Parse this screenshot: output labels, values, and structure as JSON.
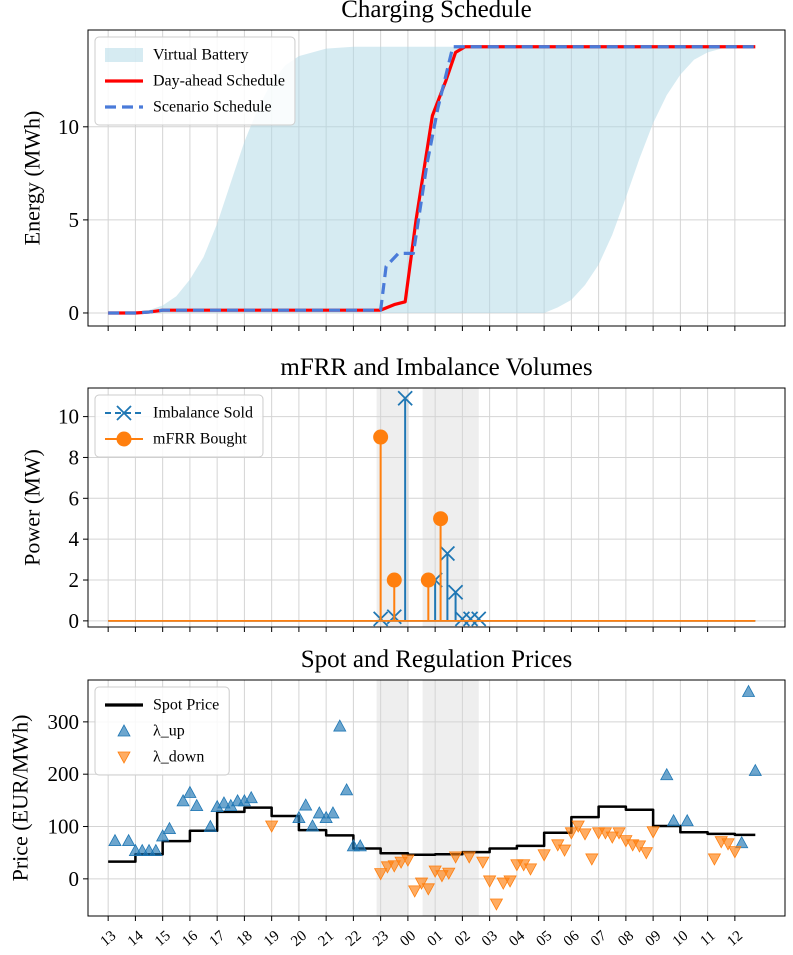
{
  "chart_data": [
    {
      "type": "line",
      "title": "Charging Schedule",
      "ylabel": "Energy (MWh)",
      "xlim": [
        12.26,
        37.84
      ],
      "ylim": [
        -0.7,
        15.2
      ],
      "xticks": [
        13,
        14,
        15,
        16,
        17,
        18,
        19,
        20,
        21,
        22,
        23,
        24,
        25,
        26,
        27,
        28,
        29,
        30,
        31,
        32,
        33,
        34,
        35,
        36
      ],
      "yticks": [
        0,
        5,
        10
      ],
      "grid": true,
      "legend": "upper left",
      "series": [
        {
          "name": "Virtual Battery",
          "color": "#add8e6",
          "style": "band",
          "x": [
            13,
            14,
            14.5,
            15,
            15.5,
            16,
            16.5,
            17,
            17.5,
            18,
            18.5,
            19,
            19.5,
            20,
            21,
            22,
            29,
            29.5,
            30,
            30.5,
            31,
            31.5,
            32,
            32.5,
            33,
            33.5,
            34,
            34.5,
            35,
            35.5,
            36,
            36.75
          ],
          "upper": [
            0,
            0.05,
            0.15,
            0.4,
            0.9,
            1.8,
            3,
            4.8,
            7,
            9.2,
            11,
            12.4,
            13.3,
            13.8,
            14.2,
            14.3,
            14.3,
            14.3,
            14.3,
            14.3,
            14.3,
            14.3,
            14.3,
            14.3,
            14.3,
            14.3,
            14.3,
            14.3,
            14.3,
            14.3,
            14.3,
            14.3
          ],
          "lower": [
            0,
            0,
            0,
            0,
            0,
            0,
            0,
            0,
            0,
            0,
            0,
            0,
            0,
            0,
            0,
            0,
            0,
            0.3,
            0.7,
            1.5,
            2.6,
            4.2,
            6.2,
            8.3,
            10.2,
            11.7,
            12.8,
            13.6,
            14.0,
            14.2,
            14.3,
            14.3
          ]
        },
        {
          "name": "Day-ahead Schedule",
          "color": "#ff0000",
          "style": "line",
          "x": [
            13,
            14,
            14.5,
            15,
            23,
            23.5,
            23.9,
            24.3,
            24.9,
            25.4,
            25.75,
            26.1,
            36.75
          ],
          "values": [
            0,
            0,
            0.05,
            0.15,
            0.15,
            0.45,
            0.6,
            5,
            10.6,
            12.5,
            14,
            14.3,
            14.3
          ]
        },
        {
          "name": "Scenario Schedule",
          "color": "#4a7bd9",
          "style": "line",
          "dashed": true,
          "x": [
            13,
            14,
            14.5,
            15,
            23,
            23.2,
            23.65,
            24.2,
            24.7,
            25.1,
            25.65,
            36.75
          ],
          "values": [
            0,
            0,
            0.05,
            0.15,
            0.15,
            2.5,
            3.2,
            3.2,
            8,
            11,
            14.3,
            14.3
          ]
        }
      ]
    },
    {
      "type": "stem",
      "title": "mFRR and Imbalance Volumes",
      "ylabel": "Power (MW)",
      "xlim": [
        12.26,
        37.84
      ],
      "ylim": [
        -0.3,
        11.4
      ],
      "xticks": [
        13,
        14,
        15,
        16,
        17,
        18,
        19,
        20,
        21,
        22,
        23,
        24,
        25,
        26,
        27,
        28,
        29,
        30,
        31,
        32,
        33,
        34,
        35,
        36
      ],
      "yticks": [
        0,
        2,
        4,
        6,
        8,
        10
      ],
      "grid": true,
      "legend": "upper left",
      "shaded_spans": [
        [
          22.85,
          24.03
        ],
        [
          24.54,
          26.6
        ]
      ],
      "series": [
        {
          "name": "Imbalance Sold",
          "color": "#1f77b4",
          "style": "stem",
          "marker": "x",
          "dashed": true,
          "x": [
            13,
            23,
            23.5,
            23.9,
            25,
            25.45,
            25.75,
            26,
            26.3,
            26.6,
            36.75
          ],
          "values": [
            0,
            0.1,
            0.2,
            10.9,
            2,
            3.3,
            1.4,
            0.1,
            0.1,
            0.1,
            0
          ]
        },
        {
          "name": "mFRR Bought",
          "color": "#ff7f0e",
          "style": "stem",
          "marker": "o",
          "x": [
            13,
            23,
            23.5,
            24.75,
            25.2,
            36.75
          ],
          "values": [
            0,
            9,
            2,
            2,
            5,
            0
          ]
        }
      ]
    },
    {
      "type": "line",
      "title": "Spot and Regulation Prices",
      "ylabel": "Price (EUR/MWh)",
      "xlim": [
        12.26,
        37.84
      ],
      "ylim": [
        -71,
        380
      ],
      "xticks": [
        13,
        14,
        15,
        16,
        17,
        18,
        19,
        20,
        21,
        22,
        23,
        {
          "value": 24,
          "label": "00"
        },
        {
          "value": 25,
          "label": "01"
        },
        {
          "value": 26,
          "label": "02"
        },
        {
          "value": 27,
          "label": "03"
        },
        {
          "value": 28,
          "label": "04"
        },
        {
          "value": 29,
          "label": "05"
        },
        {
          "value": 30,
          "label": "06"
        },
        {
          "value": 31,
          "label": "07"
        },
        {
          "value": 32,
          "label": "08"
        },
        {
          "value": 33,
          "label": "09"
        },
        {
          "value": 34,
          "label": "10"
        },
        {
          "value": 35,
          "label": "11"
        },
        {
          "value": 36,
          "label": "12"
        }
      ],
      "show_xtick_labels": true,
      "yticks": [
        0,
        100,
        200,
        300
      ],
      "grid": true,
      "legend": "upper left",
      "shaded_spans": [
        [
          22.85,
          24.03
        ],
        [
          24.54,
          26.6
        ]
      ],
      "series": [
        {
          "name": "Spot Price",
          "color": "#000000",
          "style": "step",
          "x": [
            13,
            14,
            15,
            16,
            17,
            18,
            19,
            20,
            21,
            22,
            23,
            24,
            25,
            26,
            27,
            28,
            29,
            30,
            31,
            32,
            33,
            34,
            35,
            36,
            36.75
          ],
          "values": [
            33,
            47,
            72,
            92,
            128,
            136,
            120,
            93,
            83,
            58,
            49,
            46,
            47,
            51,
            58,
            63,
            88,
            118,
            138,
            132,
            101,
            89,
            86,
            84,
            84
          ]
        },
        {
          "name": "λ_up",
          "color": "#1f77b4",
          "style": "scatter",
          "marker": "^",
          "x": [
            13.25,
            13.75,
            14,
            14.25,
            14.5,
            14.75,
            15,
            15.25,
            15.75,
            16,
            16.25,
            16.75,
            17,
            17.25,
            17.5,
            17.75,
            18,
            18.25,
            20,
            20.25,
            20.5,
            20.75,
            21,
            21.25,
            21.5,
            21.75,
            22,
            22.25,
            33.5,
            33.75,
            34.25,
            36.25,
            36.5,
            36.75
          ],
          "values": [
            73,
            73,
            54,
            54,
            54,
            54,
            82,
            96,
            149,
            165,
            140,
            100,
            138,
            145,
            140,
            149,
            149,
            155,
            117,
            141,
            101,
            126,
            117,
            126,
            292,
            170,
            63,
            63,
            199,
            111,
            111,
            69,
            358,
            207
          ]
        },
        {
          "name": "λ_down",
          "color": "#ff7f0e",
          "style": "scatter",
          "marker": "v",
          "x": [
            19,
            23,
            23.25,
            23.5,
            23.75,
            24,
            24.25,
            24.5,
            24.75,
            25,
            25.25,
            25.5,
            25.75,
            26.25,
            26.75,
            27,
            27.25,
            27.5,
            27.75,
            28,
            28.25,
            28.5,
            29,
            29.5,
            29.75,
            30,
            30.25,
            30.5,
            30.75,
            31,
            31.25,
            31.5,
            31.75,
            32,
            32.25,
            32.5,
            32.75,
            33,
            35.25,
            35.5,
            35.75,
            36
          ],
          "values": [
            101,
            10,
            23,
            25,
            32,
            36,
            -23,
            -8,
            -19,
            15,
            6,
            11,
            42,
            42,
            32,
            -4,
            -48,
            -8,
            -4,
            27,
            27,
            19,
            46,
            65,
            55,
            88,
            101,
            86,
            38,
            88,
            88,
            80,
            88,
            73,
            65,
            63,
            50,
            90,
            38,
            71,
            67,
            52
          ]
        }
      ]
    }
  ]
}
